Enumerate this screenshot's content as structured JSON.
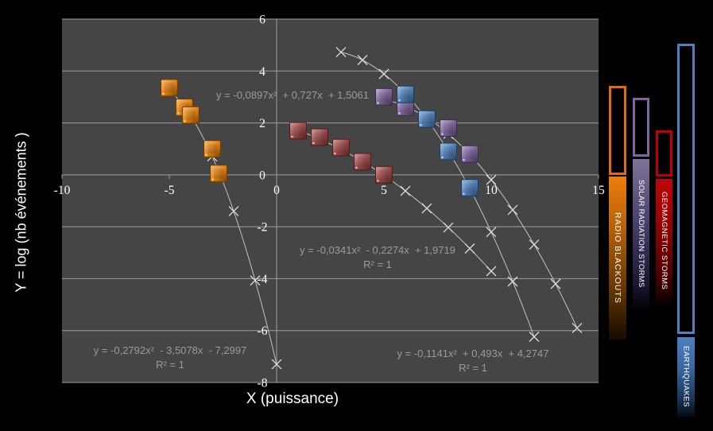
{
  "chart_data": {
    "type": "scatter",
    "xlabel": "X (puissance)",
    "ylabel": "Y = log (nb événements )",
    "xlim": [
      -10,
      15
    ],
    "ylim": [
      -8,
      6
    ],
    "xticks": [
      -10,
      -5,
      0,
      5,
      10,
      15
    ],
    "yticks": [
      6,
      4,
      2,
      0,
      -2,
      -4,
      -6,
      -8
    ],
    "grid": "horizontal-only",
    "plot_bg": "#454545",
    "gridline_color": "#9e9e9e",
    "trend_color": "#c2c2c2",
    "trend_marker_color": "#dedede",
    "series": [
      {
        "name": "radio-blackouts",
        "marker_color": "#E8820C",
        "points": [
          [
            -5,
            3.35
          ],
          [
            -4.3,
            2.6
          ],
          [
            -4,
            2.3
          ],
          [
            -3,
            1.0
          ],
          [
            -2.7,
            0.05
          ]
        ],
        "trend": {
          "equation": "y = -0,2792x²  - 3,5078x  - 7,2997",
          "r2": "R² = 1",
          "a": -0.2792,
          "b": -3.5078,
          "c": -7.2997,
          "x_start": -5,
          "x_end": 0
        }
      },
      {
        "name": "geomagnetic-storms",
        "marker_color": "#9E4745",
        "points": [
          [
            1,
            1.7
          ],
          [
            2,
            1.45
          ],
          [
            3,
            1.05
          ],
          [
            4,
            0.5
          ],
          [
            5,
            0
          ]
        ],
        "trend": {
          "equation": "y = -0,0341x²  - 0,2274x  + 1,9719",
          "r2": "R² = 1",
          "a": -0.0341,
          "b": -0.2274,
          "c": 1.9719,
          "x_start": 1,
          "x_end": 10
        }
      },
      {
        "name": "solar-radiation-storms",
        "marker_color": "#8064A2",
        "points": [
          [
            5,
            3.0
          ],
          [
            6,
            2.6
          ],
          [
            8,
            1.8
          ],
          [
            9,
            0.8
          ]
        ],
        "trend": {
          "equation": "y = -0,0897x²  + 0,727x  + 1,5061",
          "r2": "",
          "a": -0.0897,
          "b": 0.727,
          "c": 1.5061,
          "x_start": 5,
          "x_end": 14
        }
      },
      {
        "name": "earthquakes",
        "marker_color": "#4F81BD",
        "points": [
          [
            6,
            3.1
          ],
          [
            7,
            2.15
          ],
          [
            8,
            0.9
          ],
          [
            9,
            -0.5
          ]
        ],
        "trend": {
          "equation": "y = -0,1141x²  + 0,493x  + 4,2747",
          "r2": "R² = 1",
          "a": -0.1141,
          "b": 0.493,
          "c": 4.2747,
          "x_start": 3,
          "x_end": 12
        }
      }
    ]
  },
  "legend": {
    "items": [
      {
        "label": "RADIO BLACKOUTS",
        "color": "#E36C09"
      },
      {
        "label": "SOLAR RADIATION STORMS",
        "color": "#8064A2"
      },
      {
        "label": "GEOMAGNETIC STORMS",
        "color": "#C00000"
      },
      {
        "label": "EARTHQUAKES",
        "color": "#4F81BD"
      }
    ]
  }
}
